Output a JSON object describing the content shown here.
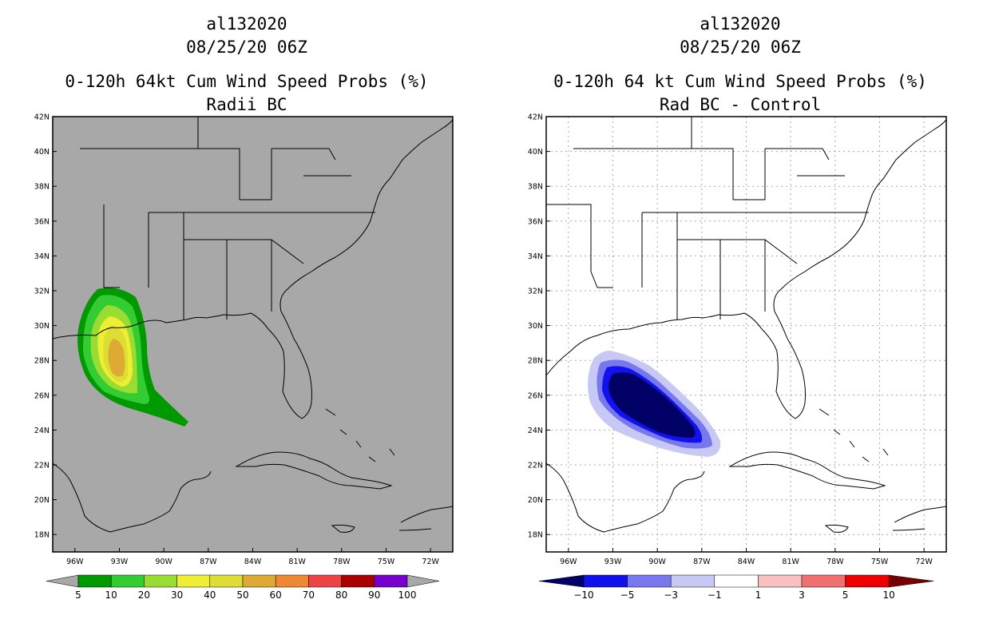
{
  "left": {
    "storm": "al132020",
    "datetime": "08/25/20 06Z",
    "title": "0-120h 64kt Cum Wind Speed Probs (%)",
    "subtitle": "Radii BC",
    "lat_labels": [
      "42N",
      "40N",
      "38N",
      "36N",
      "34N",
      "32N",
      "30N",
      "28N",
      "26N",
      "24N",
      "22N",
      "20N",
      "18N"
    ],
    "lon_labels": [
      "96W",
      "93W",
      "90W",
      "87W",
      "84W",
      "81W",
      "78W",
      "75W",
      "72W"
    ],
    "colorbar": {
      "labels": [
        "5",
        "10",
        "20",
        "30",
        "40",
        "50",
        "60",
        "70",
        "80",
        "90",
        "100"
      ],
      "colors": [
        "#009900",
        "#33cc33",
        "#99dd33",
        "#eeee33",
        "#dddd33",
        "#ddaa33",
        "#ee8833",
        "#ee4444",
        "#aa0000",
        "#7700cc"
      ]
    },
    "background": "#a8a8a8"
  },
  "right": {
    "storm": "al132020",
    "datetime": "08/25/20 06Z",
    "title": "0-120h 64 kt Cum Wind Speed Probs (%)",
    "subtitle": "Rad BC - Control",
    "lat_labels": [
      "42N",
      "40N",
      "38N",
      "36N",
      "34N",
      "32N",
      "30N",
      "28N",
      "26N",
      "24N",
      "22N",
      "20N",
      "18N"
    ],
    "lon_labels": [
      "96W",
      "93W",
      "90W",
      "87W",
      "84W",
      "81W",
      "78W",
      "75W",
      "72W"
    ],
    "colorbar": {
      "labels": [
        "-10",
        "-5",
        "-3",
        "-1",
        "1",
        "3",
        "5",
        "10"
      ],
      "colors": [
        "#000066",
        "#1111ee",
        "#7777ee",
        "#c8c8f4",
        "#ffffff",
        "#f9c0c0",
        "#f07070",
        "#ee0000",
        "#770000"
      ]
    },
    "background": "#ffffff"
  }
}
